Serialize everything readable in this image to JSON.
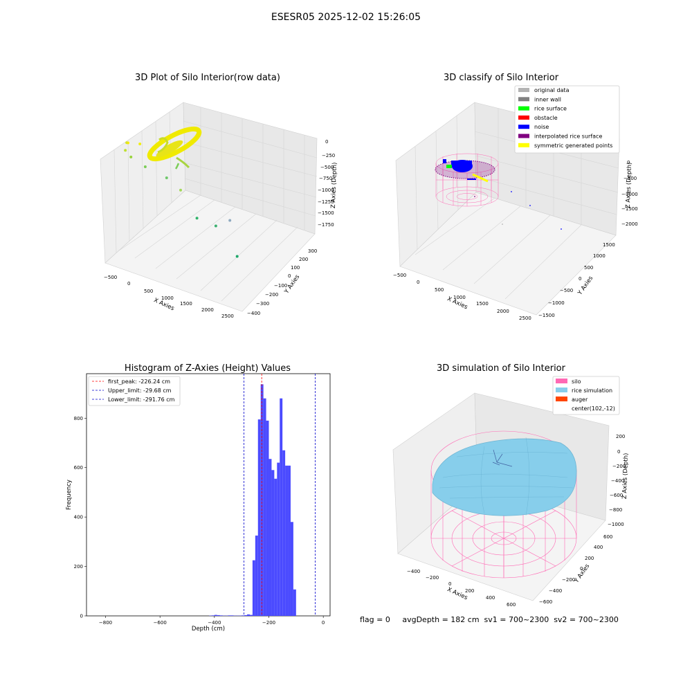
{
  "suptitle": "ESESR05 2025-12-02 15:26:05",
  "footer": "flag = 0     avgDepth = 182 cm  sv1 = 700~2300  sv2 = 700~2300",
  "colors": {
    "hist_bar": "#4b4bff",
    "peak_line": "#ff0000",
    "limit_line": "#0000cc",
    "silo": "#ff69b4",
    "rice": "#87ceeb",
    "pane": "#f2f2f2",
    "grid": "#d8d8d8"
  },
  "chart_data": [
    {
      "type": "scatter3d",
      "title": "3D Plot of Silo Interior(row data)",
      "xlabel": "X Axies",
      "ylabel": "Y Axies",
      "zlabel": "Z Axies (Depth)",
      "x_ticks": [
        "−500",
        "0",
        "500",
        "1000",
        "1500",
        "2000",
        "2500"
      ],
      "y_ticks": [
        "−400",
        "−300",
        "−200",
        "−100",
        "0",
        "100",
        "200",
        "300"
      ],
      "z_ticks": [
        "0",
        "−250",
        "−500",
        "−750",
        "−1000",
        "−1250",
        "−1500",
        "−1750"
      ],
      "points": [
        {
          "x": 0,
          "y": 0,
          "z": -20,
          "color": "#ffea00"
        },
        {
          "x": 120,
          "y": 60,
          "z": -40,
          "color": "#f2ee10"
        },
        {
          "x": -80,
          "y": 40,
          "z": -60,
          "color": "#dde620"
        },
        {
          "x": 40,
          "y": -60,
          "z": -120,
          "color": "#bfe034"
        },
        {
          "x": 80,
          "y": -20,
          "z": -260,
          "color": "#9ad43c"
        },
        {
          "x": 300,
          "y": 0,
          "z": -400,
          "color": "#7ccd58"
        },
        {
          "x": 600,
          "y": 50,
          "z": -560,
          "color": "#6fc86a"
        },
        {
          "x": 800,
          "y": 80,
          "z": -760,
          "color": "#a4d95a"
        },
        {
          "x": 1200,
          "y": 0,
          "z": -1150,
          "color": "#2fb36a"
        },
        {
          "x": 1500,
          "y": 20,
          "z": -1230,
          "color": "#3cb070"
        },
        {
          "x": 1600,
          "y": 120,
          "z": -1150,
          "color": "#8faac0"
        },
        {
          "x": 1900,
          "y": 0,
          "z": -1700,
          "color": "#1da86a"
        }
      ]
    },
    {
      "type": "scatter3d",
      "title": "3D classify of Silo Interior",
      "xlabel": "X Axies",
      "ylabel": "Y Axies",
      "zlabel": "Z Axies (Depth)",
      "x_ticks": [
        "−500",
        "0",
        "500",
        "1000",
        "1500",
        "2000",
        "2500"
      ],
      "y_ticks": [
        "−1500",
        "−1000",
        "−500",
        "0",
        "500",
        "1000",
        "1500"
      ],
      "z_ticks": [
        "0",
        "−500",
        "−1000",
        "−1500",
        "−2000"
      ],
      "legend": [
        {
          "label": "original data",
          "color": "#b3b3b3"
        },
        {
          "label": "inner wall",
          "color": "#808080"
        },
        {
          "label": "rice surface",
          "color": "#00ff00"
        },
        {
          "label": "obstacle",
          "color": "#ff0000"
        },
        {
          "label": "noise",
          "color": "#0000ff"
        },
        {
          "label": "interpolated rice surface",
          "color": "#800080"
        },
        {
          "label": "symmetric generated points",
          "color": "#ffff00"
        }
      ]
    },
    {
      "type": "bar",
      "title": "Histogram of Z-Axies (Height) Values",
      "xlabel": "Depth (cm)",
      "ylabel": "Frequency",
      "xlim": [
        -870,
        25
      ],
      "ylim": [
        0,
        980
      ],
      "x_ticks": [
        -800,
        -600,
        -400,
        -200,
        0
      ],
      "x_tick_labels": [
        "−800",
        "−600",
        "−400",
        "−200",
        "0"
      ],
      "y_ticks": [
        0,
        200,
        400,
        600,
        800
      ],
      "bins": [
        {
          "x0": -420,
          "x1": -410,
          "value": 1
        },
        {
          "x0": -410,
          "x1": -400,
          "value": 2
        },
        {
          "x0": -400,
          "x1": -390,
          "value": 4
        },
        {
          "x0": -390,
          "x1": -380,
          "value": 3
        },
        {
          "x0": -380,
          "x1": -370,
          "value": 2
        },
        {
          "x0": -370,
          "x1": -360,
          "value": 1
        },
        {
          "x0": -360,
          "x1": -350,
          "value": 1
        },
        {
          "x0": -350,
          "x1": -340,
          "value": 2
        },
        {
          "x0": -340,
          "x1": -330,
          "value": 2
        },
        {
          "x0": -330,
          "x1": -320,
          "value": 1
        },
        {
          "x0": -320,
          "x1": -310,
          "value": 1
        },
        {
          "x0": -310,
          "x1": -300,
          "value": 1
        },
        {
          "x0": -300,
          "x1": -290,
          "value": 2
        },
        {
          "x0": -290,
          "x1": -280,
          "value": 3
        },
        {
          "x0": -280,
          "x1": -270,
          "value": 6
        },
        {
          "x0": -270,
          "x1": -260,
          "value": 4
        },
        {
          "x0": -260,
          "x1": -250,
          "value": 225
        },
        {
          "x0": -250,
          "x1": -240,
          "value": 325
        },
        {
          "x0": -240,
          "x1": -230,
          "value": 795
        },
        {
          "x0": -230,
          "x1": -220,
          "value": 937
        },
        {
          "x0": -220,
          "x1": -210,
          "value": 880
        },
        {
          "x0": -210,
          "x1": -200,
          "value": 790
        },
        {
          "x0": -200,
          "x1": -190,
          "value": 635
        },
        {
          "x0": -190,
          "x1": -180,
          "value": 590
        },
        {
          "x0": -180,
          "x1": -170,
          "value": 555
        },
        {
          "x0": -170,
          "x1": -160,
          "value": 620
        },
        {
          "x0": -160,
          "x1": -150,
          "value": 880
        },
        {
          "x0": -150,
          "x1": -140,
          "value": 670
        },
        {
          "x0": -140,
          "x1": -130,
          "value": 608
        },
        {
          "x0": -130,
          "x1": -120,
          "value": 608
        },
        {
          "x0": -120,
          "x1": -110,
          "value": 380
        },
        {
          "x0": -110,
          "x1": -100,
          "value": 107
        }
      ],
      "vlines": [
        {
          "x": -226.24,
          "label": "first_peak: -226.24 cm",
          "style": "peak"
        },
        {
          "x": -29.68,
          "label": "Upper_limit: -29.68 cm",
          "style": "limit"
        },
        {
          "x": -291.76,
          "label": "Lower_limit: -291.76 cm",
          "style": "limit"
        }
      ]
    },
    {
      "type": "surface3d",
      "title": "3D simulation of Silo Interior",
      "xlabel": "X Axies",
      "ylabel": "Y Axies",
      "zlabel": "Z Axies (Depth)",
      "x_ticks": [
        "−400",
        "−200",
        "0",
        "200",
        "400",
        "600"
      ],
      "y_ticks": [
        "−600",
        "−400",
        "−200",
        "0",
        "200",
        "400",
        "600"
      ],
      "z_ticks": [
        "200",
        "0",
        "−200",
        "−400",
        "−600",
        "−800",
        "−1000"
      ],
      "legend": [
        {
          "label": "silo",
          "color": "#ff69b4"
        },
        {
          "label": "rice simulation",
          "color": "#87ceeb"
        },
        {
          "label": "auger",
          "color": "#ff4500"
        },
        {
          "label": "center(102,-12)",
          "color": ""
        }
      ]
    }
  ]
}
